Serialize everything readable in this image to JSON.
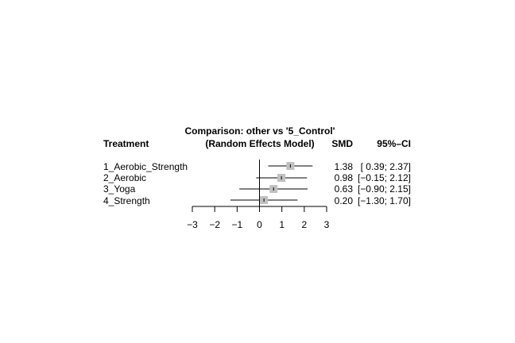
{
  "chart_data": {
    "type": "forest",
    "header": {
      "title_line1": "Comparison: other vs '5_Control'",
      "title_line2": "(Random Effects Model)",
      "col_treatment": "Treatment",
      "col_smd": "SMD",
      "col_ci": "95%–CI"
    },
    "rows": [
      {
        "label": "1_Aerobic_Strength",
        "smd": 1.38,
        "lower": 0.39,
        "upper": 2.37,
        "smd_text": "1.38",
        "ci_text": "[ 0.39; 2.37]"
      },
      {
        "label": "2_Aerobic",
        "smd": 0.98,
        "lower": -0.15,
        "upper": 2.12,
        "smd_text": "0.98",
        "ci_text": "[−0.15; 2.12]"
      },
      {
        "label": "3_Yoga",
        "smd": 0.63,
        "lower": -0.9,
        "upper": 2.15,
        "smd_text": "0.63",
        "ci_text": "[−0.90; 2.15]"
      },
      {
        "label": "4_Strength",
        "smd": 0.2,
        "lower": -1.3,
        "upper": 1.7,
        "smd_text": "0.20",
        "ci_text": "[−1.30; 1.70]"
      }
    ],
    "xlim": [
      -3,
      3
    ],
    "ticks": [
      -3,
      -2,
      -1,
      0,
      1,
      2,
      3
    ],
    "tick_labels": [
      "−3",
      "−2",
      "−1",
      "0",
      "1",
      "2",
      "3"
    ],
    "reference_line": 0,
    "colors": {
      "square": "#c0c0c0",
      "line": "#000000"
    }
  }
}
